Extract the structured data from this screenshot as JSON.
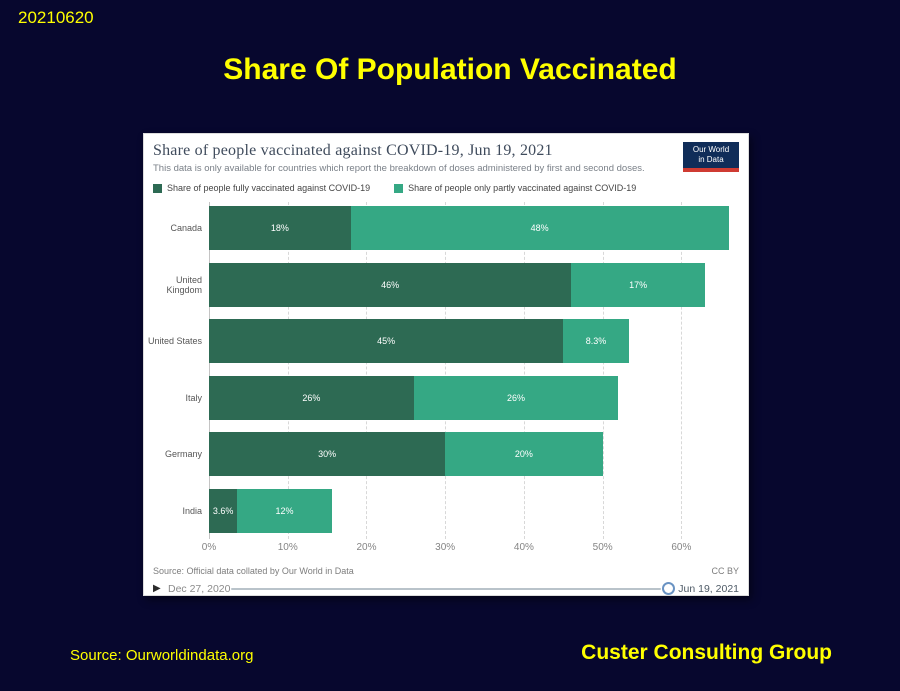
{
  "slide": {
    "date_code": "20210620",
    "title": "Share Of Population Vaccinated",
    "source_label": "Source:  Ourworldindata.org",
    "company": "Custer Consulting Group",
    "background_color": "#07072e",
    "accent_yellow": "#ffff00"
  },
  "chart": {
    "title": "Share of people vaccinated against COVID-19, Jun 19, 2021",
    "subtitle": "This data is only available for countries which report the breakdown of doses administered by first and second doses.",
    "logo": {
      "line1": "Our World",
      "line2": "in Data"
    },
    "legend": [
      {
        "label": "Share of people fully vaccinated against COVID-19",
        "color": "#2d6a53"
      },
      {
        "label": "Share of people only partly vaccinated against COVID-19",
        "color": "#35a884"
      }
    ],
    "source": "Source: Official data collated by Our World in Data",
    "license": "CC BY",
    "timeline": {
      "start": "Dec 27, 2020",
      "end": "Jun 19, 2021"
    }
  },
  "chart_data": {
    "type": "bar",
    "orientation": "horizontal",
    "stacked": true,
    "title": "Share of people vaccinated against COVID-19, Jun 19, 2021",
    "categories": [
      "Canada",
      "United Kingdom",
      "United States",
      "Italy",
      "Germany",
      "India"
    ],
    "series": [
      {
        "name": "Share of people fully vaccinated against COVID-19",
        "color": "#2d6a53",
        "values": [
          18,
          46,
          45,
          26,
          30,
          3.6
        ],
        "labels": [
          "18%",
          "46%",
          "45%",
          "26%",
          "30%",
          "3.6%"
        ]
      },
      {
        "name": "Share of people only partly vaccinated against COVID-19",
        "color": "#35a884",
        "values": [
          48,
          17,
          8.3,
          26,
          20,
          12
        ],
        "labels": [
          "48%",
          "17%",
          "8.3%",
          "26%",
          "20%",
          "12%"
        ]
      }
    ],
    "x_ticks": [
      "0%",
      "10%",
      "20%",
      "30%",
      "40%",
      "50%",
      "60%"
    ],
    "x_tick_values": [
      0,
      10,
      20,
      30,
      40,
      50,
      60
    ],
    "xlim": [
      0,
      67.7
    ],
    "grid": "dashed-vertical",
    "legend_position": "top"
  }
}
